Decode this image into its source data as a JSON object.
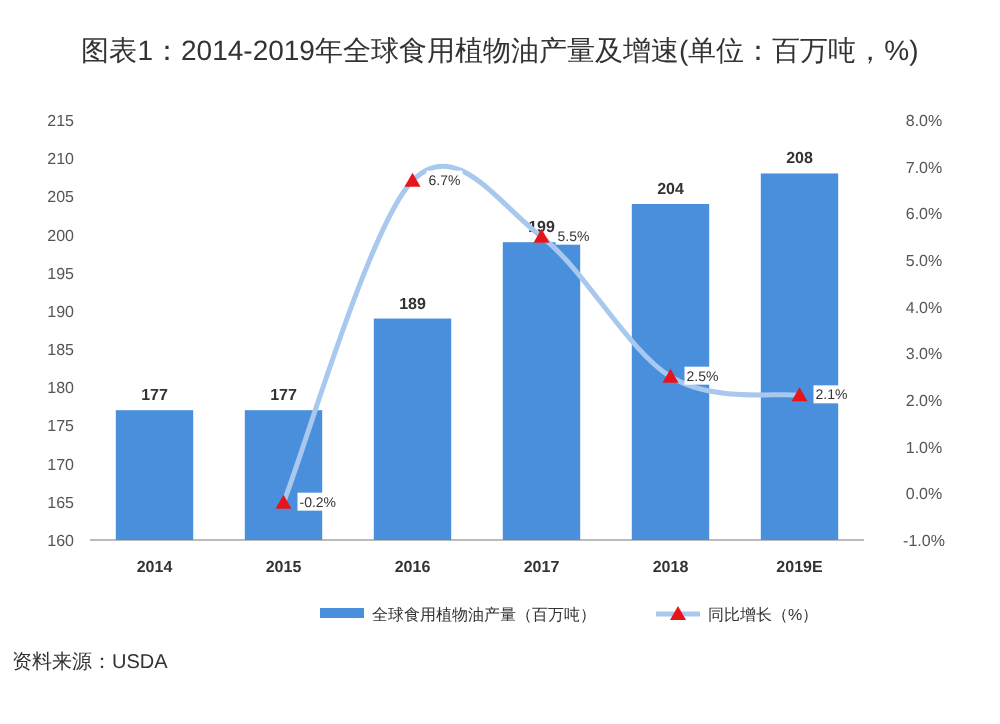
{
  "chart_data": {
    "type": "bar",
    "title": "图表1：2014-2019年全球食用植物油产量及增速(单位：百万吨，%)",
    "categories": [
      "2014",
      "2015",
      "2016",
      "2017",
      "2018",
      "2019E"
    ],
    "series": [
      {
        "name": "全球食用植物油产量（百万吨）",
        "color": "#4a8fdc",
        "values": [
          177,
          177,
          189,
          199,
          204,
          208
        ],
        "value_labels": [
          "177",
          "177",
          "189",
          "199",
          "204",
          "208"
        ]
      },
      {
        "name": "同比增长（%）",
        "type": "line",
        "axis": "y2",
        "color": "#a9c8ee",
        "colors": [
          "#e8141c",
          "#e8141c",
          "#e8141c",
          "#e8141c",
          "#e8141c",
          "#e8141c"
        ],
        "marker": "triangle",
        "values": [
          null,
          -0.2,
          6.7,
          5.5,
          2.5,
          2.1
        ],
        "value_labels": [
          null,
          "-0.2%",
          "6.7%",
          "5.5%",
          "2.5%",
          "2.1%"
        ]
      }
    ],
    "ylim": [
      160,
      215
    ],
    "yticks": [
      160,
      165,
      170,
      175,
      180,
      185,
      190,
      195,
      200,
      205,
      210,
      215
    ],
    "y2lim": [
      -1,
      8
    ],
    "y2ticks": [
      {
        "value": -1,
        "label": "-1.0%"
      },
      {
        "value": 0,
        "label": "0.0%"
      },
      {
        "value": 1,
        "label": "1.0%"
      },
      {
        "value": 2,
        "label": "2.0%"
      },
      {
        "value": 3,
        "label": "3.0%"
      },
      {
        "value": 4,
        "label": "4.0%"
      },
      {
        "value": 5,
        "label": "5.0%"
      },
      {
        "value": 6,
        "label": "6.0%"
      },
      {
        "value": 7,
        "label": "7.0%"
      },
      {
        "value": 8,
        "label": "8.0%"
      }
    ],
    "grid": false,
    "legend": "bottom",
    "annotations": [
      "资料来源：USDA"
    ]
  }
}
